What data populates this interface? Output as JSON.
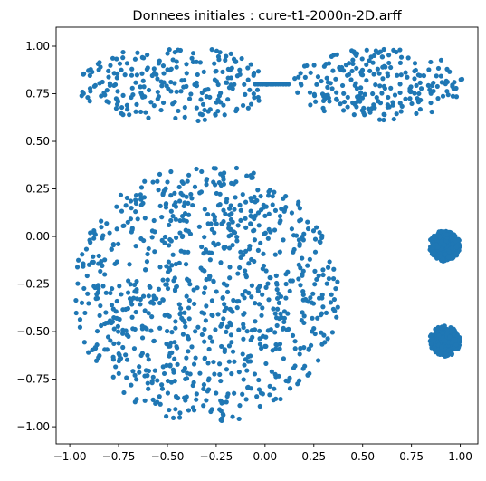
{
  "chart_data": {
    "type": "scatter",
    "title": "Donnees initiales : cure-t1-2000n-2D.arff",
    "xlabel": "",
    "ylabel": "",
    "xlim": [
      -1.07,
      1.09
    ],
    "ylim": [
      -1.09,
      1.1
    ],
    "x_ticks": [
      -1.0,
      -0.75,
      -0.5,
      -0.25,
      0.0,
      0.25,
      0.5,
      0.75,
      1.0
    ],
    "y_ticks": [
      1.0,
      0.75,
      0.5,
      0.25,
      0.0,
      -0.25,
      -0.5,
      -0.75,
      -1.0
    ],
    "x_tick_labels": [
      "−1.00",
      "−0.75",
      "−0.50",
      "−0.25",
      "0.00",
      "0.25",
      "0.50",
      "0.75",
      "1.00"
    ],
    "y_tick_labels": [
      "1.00",
      "0.75",
      "0.50",
      "0.25",
      "0.00",
      "−0.25",
      "−0.50",
      "−0.75",
      "−1.00"
    ],
    "grid": false,
    "legend": "none",
    "marker_color": "#1f77b4",
    "point_count_estimate": 2000,
    "clusters": [
      {
        "shape": "ellipse",
        "center": [
          -0.47,
          0.8
        ],
        "radii": [
          0.5,
          0.2
        ],
        "points": 230
      },
      {
        "shape": "ellipse",
        "center": [
          0.58,
          0.8
        ],
        "radii": [
          0.44,
          0.19
        ],
        "points": 230
      },
      {
        "shape": "bridge",
        "from": [
          -0.05,
          0.8
        ],
        "to": [
          0.12,
          0.8
        ],
        "points": 14
      },
      {
        "shape": "disk",
        "center": [
          -0.3,
          -0.3
        ],
        "radius": 0.68,
        "points": 900
      },
      {
        "shape": "disk",
        "center": [
          0.92,
          -0.05
        ],
        "radius": 0.08,
        "points": 300
      },
      {
        "shape": "disk",
        "center": [
          0.92,
          -0.55
        ],
        "radius": 0.08,
        "points": 300
      }
    ]
  }
}
